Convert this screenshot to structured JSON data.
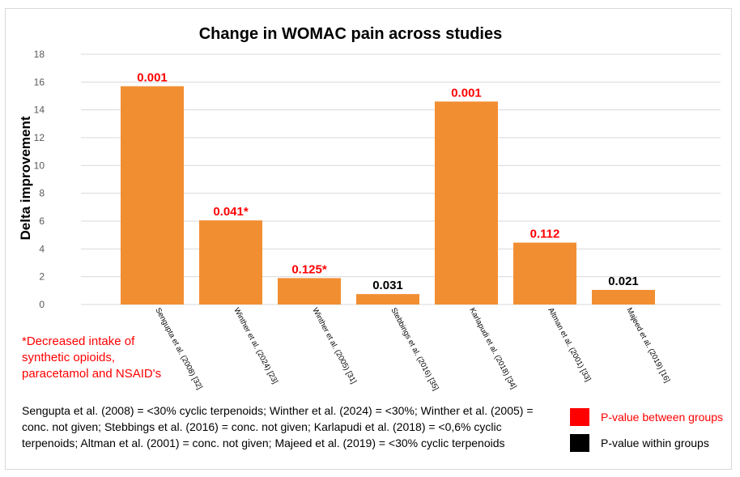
{
  "chart_data": {
    "type": "bar",
    "title": "Change in WOMAC pain across studies",
    "ylabel": "Delta improvement",
    "xlabel": "",
    "ylim": [
      0,
      18
    ],
    "yticks": [
      0,
      2,
      4,
      6,
      8,
      10,
      12,
      14,
      16,
      18
    ],
    "grid": true,
    "bar_color": "#f28e32",
    "categories": [
      "Sengupta et al. (2008) [32]",
      "Winther et al. (2024) [23]",
      "Winther et al. (2005) [31]",
      "Stebbings et al. (2016) [35]",
      "Karlapudi et al. (2018) [34]",
      "Altman et al. (2001) [33]",
      "Majeed et al. (2019) [16]"
    ],
    "values": [
      15.7,
      6.05,
      1.9,
      0.75,
      14.6,
      4.45,
      1.05
    ],
    "data_labels": [
      "0.001",
      "0.041*",
      "0.125*",
      "0.031",
      "0.001",
      "0.112",
      "0.021"
    ],
    "label_types": [
      "between",
      "between",
      "between",
      "within",
      "between",
      "between",
      "within"
    ]
  },
  "footnote": "*Decreased intake of synthetic opioids, paracetamol and NSAID's",
  "concentration_note": "Sengupta et al. (2008) = <30% cyclic terpenoids; Winther et al. (2024) = <30%; Winther et al. (2005) = conc. not given;  Stebbings et al. (2016) = conc. not given; Karlapudi et al. (2018) = <0,6% cyclic terpenoids; Altman et al. (2001) = conc. not given; Majeed et al. (2019) = <30% cyclic terpenoids",
  "legend": {
    "between": {
      "label": "P-value between groups",
      "color": "#ff0000"
    },
    "within": {
      "label": "P-value within groups",
      "color": "#000000"
    }
  }
}
